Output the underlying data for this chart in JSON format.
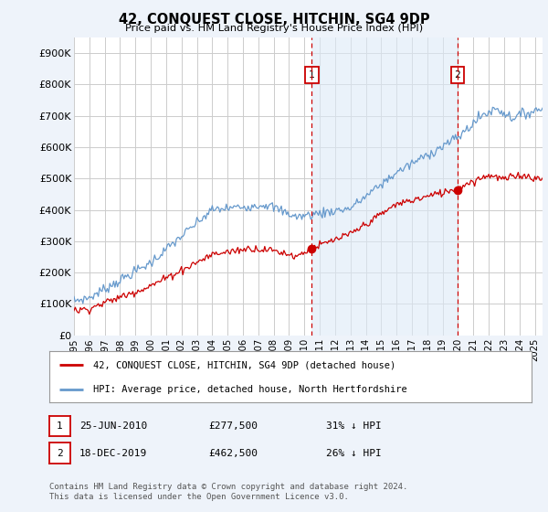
{
  "title": "42, CONQUEST CLOSE, HITCHIN, SG4 9DP",
  "subtitle": "Price paid vs. HM Land Registry's House Price Index (HPI)",
  "bg_color": "#eef3fa",
  "plot_bg_color": "#ffffff",
  "legend_line1": "42, CONQUEST CLOSE, HITCHIN, SG4 9DP (detached house)",
  "legend_line2": "HPI: Average price, detached house, North Hertfordshire",
  "annotation1": {
    "label": "1",
    "date": "25-JUN-2010",
    "price": "£277,500",
    "note": "31% ↓ HPI"
  },
  "annotation2": {
    "label": "2",
    "date": "18-DEC-2019",
    "price": "£462,500",
    "note": "26% ↓ HPI"
  },
  "footer": "Contains HM Land Registry data © Crown copyright and database right 2024.\nThis data is licensed under the Open Government Licence v3.0.",
  "yticks": [
    0,
    100000,
    200000,
    300000,
    400000,
    500000,
    600000,
    700000,
    800000,
    900000
  ],
  "ytick_labels": [
    "£0",
    "£100K",
    "£200K",
    "£300K",
    "£400K",
    "£500K",
    "£600K",
    "£700K",
    "£800K",
    "£900K"
  ],
  "ylim": [
    0,
    950000
  ],
  "xlim_start": 1995.0,
  "xlim_end": 2025.5,
  "marker1_x": 2010.484,
  "marker1_y": 277500,
  "marker2_x": 2019.962,
  "marker2_y": 462500,
  "price_color": "#cc0000",
  "hpi_color": "#6699cc",
  "hpi_fill_color": "#ddeaf7",
  "grid_color": "#cccccc",
  "vline_color": "#cc0000"
}
